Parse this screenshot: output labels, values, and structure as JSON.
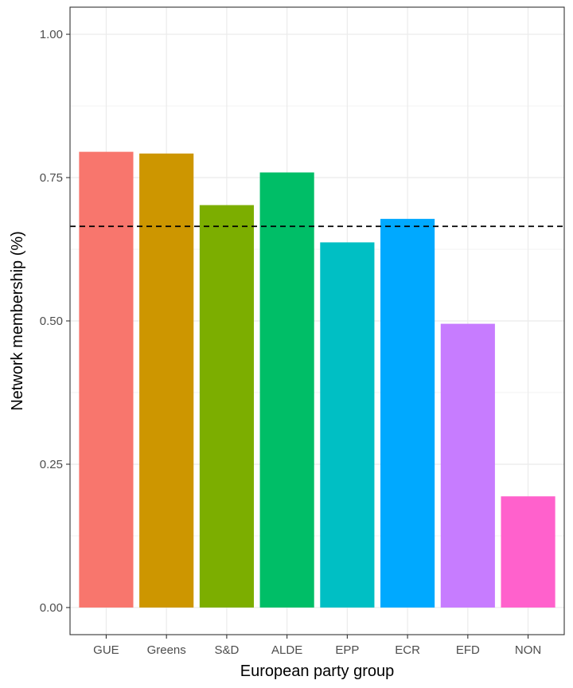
{
  "chart_data": {
    "type": "bar",
    "xlabel": "European party group",
    "ylabel": "Network membership (%)",
    "categories": [
      "GUE",
      "Greens",
      "S&D",
      "ALDE",
      "EPP",
      "ECR",
      "EFD",
      "NON"
    ],
    "values": [
      0.795,
      0.792,
      0.702,
      0.759,
      0.637,
      0.678,
      0.495,
      0.194
    ],
    "colors": [
      "#F8766D",
      "#CD9600",
      "#7CAE00",
      "#00BE67",
      "#00BFC4",
      "#00A9FF",
      "#C77CFF",
      "#FF61CC"
    ],
    "yticks": [
      "0.00",
      "0.25",
      "0.50",
      "0.75",
      "1.00"
    ],
    "ytick_values": [
      0,
      0.25,
      0.5,
      0.75,
      1.0
    ],
    "ylim": [
      -0.0473,
      1.0473
    ],
    "reference_line": {
      "value": 0.665,
      "style": "dashed"
    },
    "grid": true,
    "legend": "none",
    "theme": "bw"
  }
}
